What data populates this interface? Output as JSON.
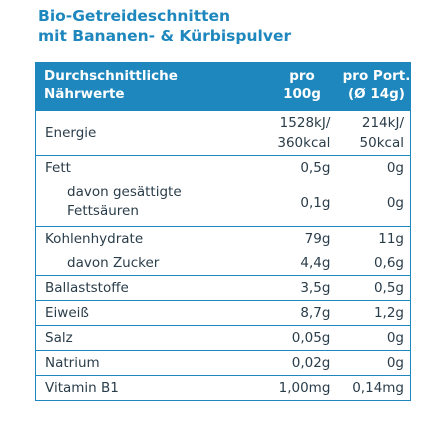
{
  "title": {
    "line1": "Bio-Getreideschnitten",
    "line2": "mit Bananen- & Kürbispulver"
  },
  "header": {
    "col1_line1": "Durchschnittliche",
    "col1_line2": "Nährwerte",
    "col2_line1": "pro",
    "col2_line2": "100g",
    "col3_line1": "pro Port.",
    "col3_line2": "(Ø 14g)"
  },
  "energy": {
    "label": "Energie",
    "per100_kj": "1528kJ/",
    "per100_kcal": "360kcal",
    "portion_kj": "214kJ/",
    "portion_kcal": "50kcal"
  },
  "fat": {
    "label": "Fett",
    "per100": "0,5g",
    "portion": "0g",
    "sub_label": "davon gesättigte Fettsäuren",
    "sub_per100": "0,1g",
    "sub_portion": "0g"
  },
  "carbs": {
    "label": "Kohlenhydrate",
    "per100": "79g",
    "portion": "11g",
    "sub_label": "davon Zucker",
    "sub_per100": "4,4g",
    "sub_portion": "0,6g"
  },
  "fibre": {
    "label": "Ballaststoffe",
    "per100": "3,5g",
    "portion": "0,5g"
  },
  "protein": {
    "label": "Eiweiß",
    "per100": "8,7g",
    "portion": "1,2g"
  },
  "salt": {
    "label": "Salz",
    "per100": "0,05g",
    "portion": "0g"
  },
  "sodium": {
    "label": "Natrium",
    "per100": "0,02g",
    "portion": "0g"
  },
  "vitamin_b1": {
    "label": "Vitamin B1",
    "per100": "1,00mg",
    "portion": "0,14mg"
  },
  "colors": {
    "accent": "#1e87bd",
    "text": "#2a3d4a",
    "header_text": "#ffffff"
  }
}
